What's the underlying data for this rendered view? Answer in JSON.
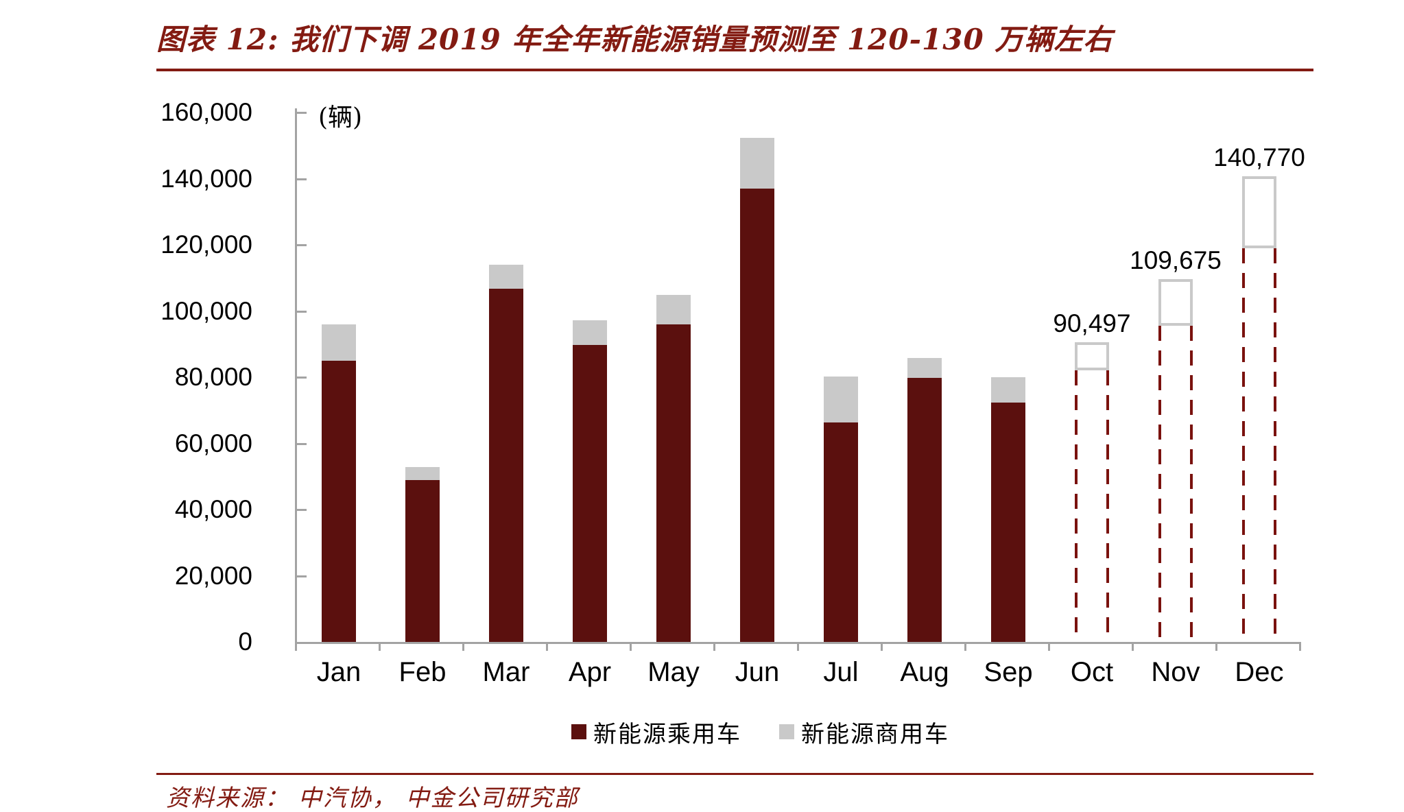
{
  "figure": {
    "title": "图表 12:  我们下调 2019 年全年新能源销量预测至 120-130 万辆左右",
    "unit_label": "(辆)",
    "source": "资料来源：  中汽协，  中金公司研究部"
  },
  "colors": {
    "passenger_bar": "#5B100E",
    "commercial_bar": "#C9C9C9",
    "forecast_outline_red": "#7A120E",
    "forecast_outline_gray": "#C9C9C9",
    "axis": "#A3A3A3",
    "title_red": "#831B12",
    "text_black": "#000000"
  },
  "chart_data": {
    "type": "bar",
    "stacked": true,
    "title": "我们下调2019年全年新能源销量预测至120-130万辆左右",
    "ylabel": "辆",
    "xlabel": "",
    "ylim": [
      0,
      160000
    ],
    "ytick_interval": 20000,
    "ytick_labels": [
      "0",
      "20,000",
      "40,000",
      "60,000",
      "80,000",
      "100,000",
      "120,000",
      "140,000",
      "160,000"
    ],
    "grid": false,
    "legend_position": "bottom",
    "categories": [
      "Jan",
      "Feb",
      "Mar",
      "Apr",
      "May",
      "Jun",
      "Jul",
      "Aug",
      "Sep",
      "Oct",
      "Nov",
      "Dec"
    ],
    "series": [
      {
        "name": "新能源乘用车",
        "values": [
          85000,
          49000,
          106700,
          89800,
          96000,
          137000,
          66400,
          79800,
          72400,
          82000,
          95500,
          119000
        ]
      },
      {
        "name": "新能源商用车",
        "values": [
          11000,
          3900,
          7300,
          7300,
          8900,
          15300,
          13800,
          5900,
          7700,
          8497,
          14175,
          21770
        ]
      }
    ],
    "forecast_start_index": 9,
    "annotations": [
      {
        "category_index": 9,
        "text": "90,497"
      },
      {
        "category_index": 10,
        "text": "109,675"
      },
      {
        "category_index": 11,
        "text": "140,770"
      }
    ]
  }
}
